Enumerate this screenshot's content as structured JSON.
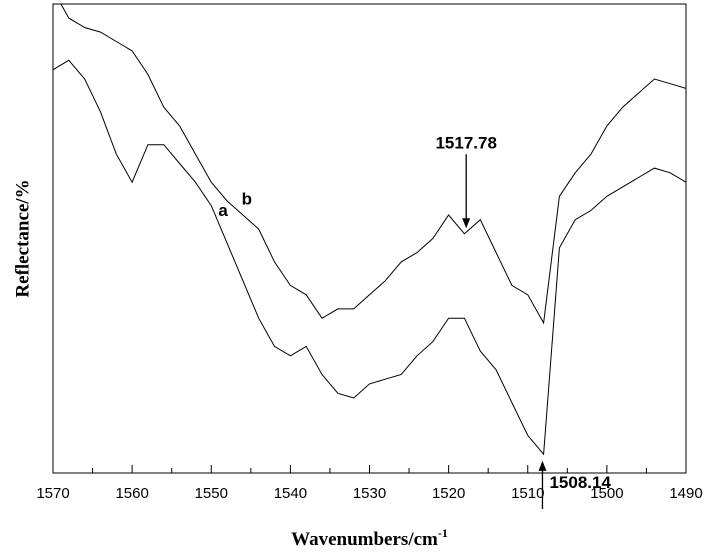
{
  "chart_data": {
    "type": "line",
    "xlabel": "Wavenumbers/cm",
    "xlabel_sup": "-1",
    "ylabel": "Reflectance/%",
    "xlim": [
      1570,
      1490
    ],
    "ylim": [
      0,
      1
    ],
    "x_reversed": true,
    "x_ticks": [
      1570,
      1560,
      1550,
      1540,
      1530,
      1520,
      1510,
      1500,
      1490
    ],
    "y_ticks_labeled": false,
    "grid": false,
    "series": [
      {
        "name": "a",
        "x": [
          1570,
          1568,
          1566,
          1564,
          1562,
          1560,
          1558,
          1556,
          1554,
          1552,
          1550,
          1548,
          1546,
          1544,
          1542,
          1540,
          1538,
          1536,
          1534,
          1532,
          1530,
          1528,
          1526,
          1524,
          1522,
          1520,
          1518,
          1516,
          1514,
          1512,
          1510,
          1508,
          1506,
          1504,
          1502,
          1500,
          1498,
          1496,
          1494,
          1492,
          1490
        ],
        "values": [
          0.86,
          0.88,
          0.84,
          0.77,
          0.68,
          0.62,
          0.7,
          0.7,
          0.66,
          0.62,
          0.57,
          0.49,
          0.41,
          0.33,
          0.27,
          0.25,
          0.27,
          0.21,
          0.17,
          0.16,
          0.19,
          0.2,
          0.21,
          0.25,
          0.28,
          0.33,
          0.33,
          0.26,
          0.22,
          0.15,
          0.08,
          0.04,
          0.48,
          0.54,
          0.56,
          0.59,
          0.61,
          0.63,
          0.65,
          0.64,
          0.62
        ]
      },
      {
        "name": "b",
        "x": [
          1570,
          1568,
          1566,
          1564,
          1562,
          1560,
          1558,
          1556,
          1554,
          1552,
          1550,
          1548,
          1546,
          1544,
          1542,
          1540,
          1538,
          1536,
          1534,
          1532,
          1530,
          1528,
          1526,
          1524,
          1522,
          1520,
          1518,
          1516,
          1514,
          1512,
          1510,
          1508,
          1506,
          1504,
          1502,
          1500,
          1498,
          1496,
          1494,
          1492,
          1490
        ],
        "values": [
          1.03,
          0.97,
          0.95,
          0.94,
          0.92,
          0.9,
          0.85,
          0.78,
          0.74,
          0.68,
          0.62,
          0.58,
          0.55,
          0.52,
          0.45,
          0.4,
          0.38,
          0.33,
          0.35,
          0.35,
          0.38,
          0.41,
          0.45,
          0.47,
          0.5,
          0.55,
          0.51,
          0.54,
          0.47,
          0.4,
          0.38,
          0.32,
          0.59,
          0.64,
          0.68,
          0.74,
          0.78,
          0.81,
          0.84,
          0.83,
          0.82
        ]
      }
    ],
    "annotations": [
      {
        "text": "1517.78",
        "x": 1517.78,
        "arrow": "down",
        "series": "b"
      },
      {
        "text": "1508.14",
        "x": 1508.14,
        "arrow": "up",
        "series": "a"
      }
    ]
  }
}
